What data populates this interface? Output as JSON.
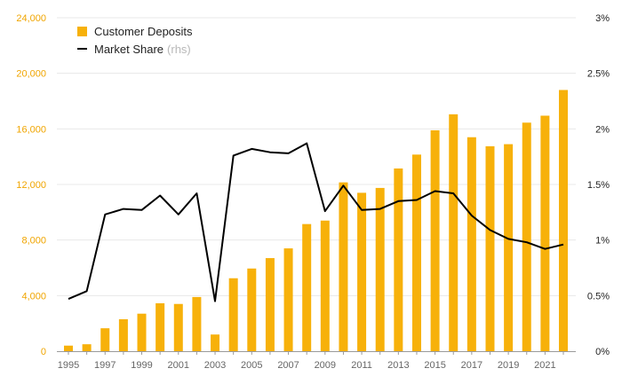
{
  "chart_data": {
    "type": "bar",
    "x": [
      1995,
      1996,
      1997,
      1998,
      1999,
      2000,
      2001,
      2002,
      2003,
      2004,
      2005,
      2006,
      2007,
      2008,
      2009,
      2010,
      2011,
      2012,
      2013,
      2014,
      2015,
      2016,
      2017,
      2018,
      2019,
      2020,
      2021,
      2022
    ],
    "x_tick_labels": [
      "1995",
      "1997",
      "1999",
      "2001",
      "2003",
      "2005",
      "2007",
      "2009",
      "2011",
      "2013",
      "2015",
      "2017",
      "2019",
      "2021"
    ],
    "left_axis": {
      "ylim": [
        0,
        24000
      ],
      "tick_labels": [
        "0",
        "4,000",
        "8,000",
        "12,000",
        "16,000",
        "20,000",
        "24,000"
      ],
      "color": "#f0a500"
    },
    "right_axis": {
      "ylim": [
        0,
        3
      ],
      "tick_labels": [
        "0%",
        "0.5%",
        "1%",
        "1.5%",
        "2%",
        "2.5%",
        "3%"
      ],
      "color": "#222222"
    },
    "grid": true,
    "legend_position": "top-left",
    "legend": [
      {
        "label": "Customer Deposits",
        "suffix": ""
      },
      {
        "label": "Market Share",
        "suffix": "(rhs)"
      }
    ],
    "series": [
      {
        "name": "Customer Deposits",
        "type": "bar",
        "axis": "left",
        "color": "#f7b10a",
        "values": [
          400,
          500,
          1650,
          2300,
          2700,
          3450,
          3400,
          3900,
          1200,
          5250,
          5950,
          6700,
          7400,
          9150,
          9400,
          12150,
          11400,
          11750,
          13150,
          14150,
          15900,
          17050,
          15400,
          14750,
          14900,
          16450,
          16950,
          18800
        ]
      },
      {
        "name": "Market Share",
        "type": "line",
        "axis": "right",
        "color": "#000000",
        "values": [
          0.47,
          0.54,
          1.23,
          1.28,
          1.27,
          1.4,
          1.23,
          1.42,
          0.45,
          1.76,
          1.82,
          1.79,
          1.78,
          1.87,
          1.26,
          1.49,
          1.27,
          1.28,
          1.35,
          1.36,
          1.44,
          1.42,
          1.22,
          1.09,
          1.01,
          0.98,
          0.92,
          0.96
        ]
      }
    ]
  }
}
